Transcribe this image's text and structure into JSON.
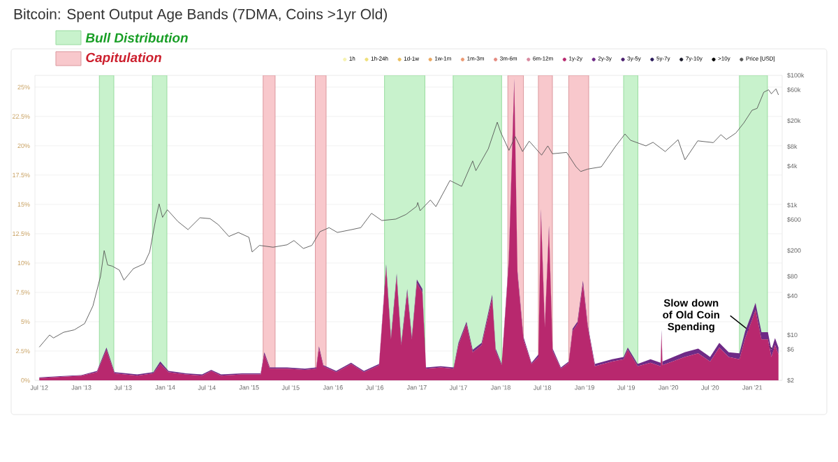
{
  "chart_data": {
    "type": "area",
    "title": "Bitcoin: Spent Output Age Bands (7DMA, Coins >1yr Old)",
    "stacked": true,
    "log": "y2",
    "grid": "y",
    "legend": "top",
    "x": [
      "2012-07-01",
      "2012-10-01",
      "2013-01-01",
      "2013-03-10",
      "2013-04-20",
      "2013-05-25",
      "2013-09-01",
      "2013-11-10",
      "2013-12-10",
      "2014-01-15",
      "2014-04-01",
      "2014-06-10",
      "2014-07-20",
      "2014-09-01",
      "2014-12-01",
      "2015-02-20",
      "2015-03-08",
      "2015-04-01",
      "2015-06-15",
      "2015-09-01",
      "2015-10-20",
      "2015-11-01",
      "2015-11-20",
      "2016-01-15",
      "2016-03-20",
      "2016-05-15",
      "2016-07-20",
      "2016-08-20",
      "2016-09-10",
      "2016-10-05",
      "2016-10-25",
      "2016-11-20",
      "2016-12-10",
      "2017-01-01",
      "2017-01-25",
      "2017-02-10",
      "2017-04-15",
      "2017-06-10",
      "2017-07-01",
      "2017-08-05",
      "2017-09-01",
      "2017-10-10",
      "2017-11-25",
      "2017-12-10",
      "2018-01-05",
      "2018-02-05",
      "2018-03-01",
      "2018-03-15",
      "2018-04-10",
      "2018-05-15",
      "2018-06-14",
      "2018-06-25",
      "2018-07-12",
      "2018-07-30",
      "2018-08-15",
      "2018-09-20",
      "2018-10-24",
      "2018-11-10",
      "2018-12-01",
      "2018-12-25",
      "2019-01-15",
      "2019-02-15",
      "2019-05-01",
      "2019-06-20",
      "2019-07-08",
      "2019-08-20",
      "2019-10-15",
      "2019-11-28",
      "2019-12-02",
      "2019-12-06",
      "2020-03-12",
      "2020-05-10",
      "2020-07-01",
      "2020-08-10",
      "2020-09-20",
      "2020-11-06",
      "2020-12-01",
      "2020-12-28",
      "2021-01-15",
      "2021-02-10",
      "2021-03-10",
      "2021-03-25",
      "2021-04-10",
      "2021-04-25"
    ],
    "series": [
      {
        "name": "1h",
        "color": "#f6f3b0",
        "values": [
          null,
          null,
          null,
          null,
          null,
          null,
          null,
          null,
          null,
          null,
          null,
          null,
          null,
          null,
          null,
          null,
          null,
          null,
          null,
          null,
          null,
          null,
          null,
          null,
          null,
          null,
          null,
          null,
          null,
          null,
          null,
          null,
          null,
          null,
          null,
          null,
          null,
          null,
          null,
          null,
          null,
          null,
          null,
          null,
          null,
          null,
          null,
          null,
          null,
          null,
          null,
          null,
          null,
          null,
          null,
          null,
          null,
          null,
          null,
          null,
          null,
          null,
          null,
          null,
          null,
          null,
          null,
          null,
          null,
          null,
          null,
          null,
          null,
          null,
          null,
          null,
          null,
          null,
          null,
          null,
          null,
          null,
          null,
          null
        ]
      },
      {
        "name": "1h-24h",
        "color": "#efe07a",
        "values": [
          null,
          null,
          null,
          null,
          null,
          null,
          null,
          null,
          null,
          null,
          null,
          null,
          null,
          null,
          null,
          null,
          null,
          null,
          null,
          null,
          null,
          null,
          null,
          null,
          null,
          null,
          null,
          null,
          null,
          null,
          null,
          null,
          null,
          null,
          null,
          null,
          null,
          null,
          null,
          null,
          null,
          null,
          null,
          null,
          null,
          null,
          null,
          null,
          null,
          null,
          null,
          null,
          null,
          null,
          null,
          null,
          null,
          null,
          null,
          null,
          null,
          null,
          null,
          null,
          null,
          null,
          null,
          null,
          null,
          null,
          null,
          null,
          null,
          null,
          null,
          null,
          null,
          null,
          null,
          null,
          null,
          null,
          null,
          null
        ]
      },
      {
        "name": "1d-1w",
        "color": "#ebc060",
        "values": [
          null,
          null,
          null,
          null,
          null,
          null,
          null,
          null,
          null,
          null,
          null,
          null,
          null,
          null,
          null,
          null,
          null,
          null,
          null,
          null,
          null,
          null,
          null,
          null,
          null,
          null,
          null,
          null,
          null,
          null,
          null,
          null,
          null,
          null,
          null,
          null,
          null,
          null,
          null,
          null,
          null,
          null,
          null,
          null,
          null,
          null,
          null,
          null,
          null,
          null,
          null,
          null,
          null,
          null,
          null,
          null,
          null,
          null,
          null,
          null,
          null,
          null,
          null,
          null,
          null,
          null,
          null,
          null,
          null,
          null,
          null,
          null,
          null,
          null,
          null,
          null,
          null,
          null,
          null,
          null,
          null,
          null,
          null,
          null
        ]
      },
      {
        "name": "1w-1m",
        "color": "#eba860",
        "values": [
          null,
          null,
          null,
          null,
          null,
          null,
          null,
          null,
          null,
          null,
          null,
          null,
          null,
          null,
          null,
          null,
          null,
          null,
          null,
          null,
          null,
          null,
          null,
          null,
          null,
          null,
          null,
          null,
          null,
          null,
          null,
          null,
          null,
          null,
          null,
          null,
          null,
          null,
          null,
          null,
          null,
          null,
          null,
          null,
          null,
          null,
          null,
          null,
          null,
          null,
          null,
          null,
          null,
          null,
          null,
          null,
          null,
          null,
          null,
          null,
          null,
          null,
          null,
          null,
          null,
          null,
          null,
          null,
          null,
          null,
          null,
          null,
          null,
          null,
          null,
          null,
          null,
          null,
          null,
          null,
          null,
          null,
          null,
          null
        ]
      },
      {
        "name": "1m-3m",
        "color": "#ec9870",
        "values": [
          null,
          null,
          null,
          null,
          null,
          null,
          null,
          null,
          null,
          null,
          null,
          null,
          null,
          null,
          null,
          null,
          null,
          null,
          null,
          null,
          null,
          null,
          null,
          null,
          null,
          null,
          null,
          null,
          null,
          null,
          null,
          null,
          null,
          null,
          null,
          null,
          null,
          null,
          null,
          null,
          null,
          null,
          null,
          null,
          null,
          null,
          null,
          null,
          null,
          null,
          null,
          null,
          null,
          null,
          null,
          null,
          null,
          null,
          null,
          null,
          null,
          null,
          null,
          null,
          null,
          null,
          null,
          null,
          null,
          null,
          null,
          null,
          null,
          null,
          null,
          null,
          null,
          null,
          null,
          null,
          null,
          null,
          null,
          null
        ]
      },
      {
        "name": "3m-6m",
        "color": "#e48a80",
        "values": [
          null,
          null,
          null,
          null,
          null,
          null,
          null,
          null,
          null,
          null,
          null,
          null,
          null,
          null,
          null,
          null,
          null,
          null,
          null,
          null,
          null,
          null,
          null,
          null,
          null,
          null,
          null,
          null,
          null,
          null,
          null,
          null,
          null,
          null,
          null,
          null,
          null,
          null,
          null,
          null,
          null,
          null,
          null,
          null,
          null,
          null,
          null,
          null,
          null,
          null,
          null,
          null,
          null,
          null,
          null,
          null,
          null,
          null,
          null,
          null,
          null,
          null,
          null,
          null,
          null,
          null,
          null,
          null,
          null,
          null,
          null,
          null,
          null,
          null,
          null,
          null,
          null,
          null,
          null,
          null,
          null,
          null,
          null,
          null
        ]
      },
      {
        "name": "6m-12m",
        "color": "#d88aa0",
        "values": [
          null,
          null,
          null,
          null,
          null,
          null,
          null,
          null,
          null,
          null,
          null,
          null,
          null,
          null,
          null,
          null,
          null,
          null,
          null,
          null,
          null,
          null,
          null,
          null,
          null,
          null,
          null,
          null,
          null,
          null,
          null,
          null,
          null,
          null,
          null,
          null,
          null,
          null,
          null,
          null,
          null,
          null,
          null,
          null,
          null,
          null,
          null,
          null,
          null,
          null,
          null,
          null,
          null,
          null,
          null,
          null,
          null,
          null,
          null,
          null,
          null,
          null,
          null,
          null,
          null,
          null,
          null,
          null,
          null,
          null,
          null,
          null,
          null,
          null,
          null,
          null,
          null,
          null,
          null,
          null,
          null,
          null,
          null,
          null
        ]
      },
      {
        "name": "1y-2y",
        "color": "#b8286e",
        "values": [
          0.2,
          0.3,
          0.4,
          0.7,
          2.6,
          0.6,
          0.4,
          0.6,
          1.4,
          0.7,
          0.5,
          0.4,
          0.8,
          0.4,
          0.5,
          0.5,
          2.2,
          1.0,
          1.0,
          0.9,
          1.0,
          2.7,
          1.2,
          0.7,
          1.4,
          0.7,
          1.3,
          9.6,
          3.5,
          8.8,
          3.0,
          7.5,
          3.5,
          8.3,
          7.5,
          1.0,
          1.1,
          1.0,
          3.0,
          4.8,
          2.4,
          3.0,
          7.0,
          2.5,
          1.3,
          10.0,
          25.3,
          9.0,
          3.5,
          1.4,
          2.0,
          14.2,
          4.5,
          12.8,
          2.5,
          1.0,
          1.5,
          4.2,
          4.8,
          8.2,
          4.5,
          1.2,
          1.6,
          1.8,
          2.6,
          1.2,
          1.5,
          1.2,
          4.0,
          1.3,
          2.0,
          2.3,
          1.6,
          2.8,
          2.0,
          1.8,
          3.6,
          5.0,
          6.0,
          3.5,
          3.5,
          2.0,
          3.0,
          2.2
        ]
      },
      {
        "name": "2y-3y",
        "color": "#6e2a86",
        "values": [
          0.05,
          0.05,
          0.05,
          0.1,
          0.2,
          0.1,
          0.1,
          0.1,
          0.2,
          0.1,
          0.1,
          0.1,
          0.1,
          0.1,
          0.1,
          0.1,
          0.2,
          0.1,
          0.1,
          0.1,
          0.1,
          0.2,
          0.1,
          0.1,
          0.1,
          0.1,
          0.1,
          0.3,
          0.2,
          0.3,
          0.2,
          0.3,
          0.2,
          0.3,
          0.3,
          0.1,
          0.1,
          0.1,
          0.2,
          0.2,
          0.2,
          0.2,
          0.3,
          0.2,
          0.1,
          0.3,
          0.4,
          0.3,
          0.2,
          0.1,
          0.2,
          0.4,
          0.2,
          0.4,
          0.2,
          0.1,
          0.1,
          0.2,
          0.2,
          0.3,
          0.2,
          0.2,
          0.2,
          0.2,
          0.2,
          0.2,
          0.3,
          0.3,
          0.3,
          0.3,
          0.4,
          0.4,
          0.4,
          0.4,
          0.4,
          0.5,
          0.6,
          0.6,
          0.6,
          0.6,
          0.6,
          0.6,
          0.6,
          0.6
        ]
      },
      {
        "name": "3y-5y",
        "color": "#4a1e6e",
        "values": [
          null,
          null,
          null,
          null,
          null,
          null,
          null,
          null,
          null,
          null,
          null,
          null,
          null,
          null,
          null,
          null,
          null,
          null,
          null,
          null,
          null,
          null,
          null,
          null,
          null,
          null,
          null,
          null,
          null,
          null,
          null,
          null,
          null,
          null,
          null,
          null,
          null,
          null,
          null,
          null,
          null,
          null,
          null,
          null,
          null,
          null,
          null,
          null,
          null,
          null,
          null,
          null,
          null,
          null,
          null,
          null,
          null,
          null,
          null,
          null,
          null,
          null,
          null,
          null,
          null,
          null,
          null,
          null,
          null,
          null,
          null,
          null,
          null,
          null,
          null,
          null,
          null,
          null,
          null,
          null,
          null,
          null,
          null,
          null
        ]
      },
      {
        "name": "5y-7y",
        "color": "#2a1a5a",
        "values": [
          null,
          null,
          null,
          null,
          null,
          null,
          null,
          null,
          null,
          null,
          null,
          null,
          null,
          null,
          null,
          null,
          null,
          null,
          null,
          null,
          null,
          null,
          null,
          null,
          null,
          null,
          null,
          null,
          null,
          null,
          null,
          null,
          null,
          null,
          null,
          null,
          null,
          null,
          null,
          null,
          null,
          null,
          null,
          null,
          null,
          null,
          null,
          null,
          null,
          null,
          null,
          null,
          null,
          null,
          null,
          null,
          null,
          null,
          null,
          null,
          null,
          null,
          null,
          null,
          null,
          null,
          null,
          null,
          null,
          null,
          null,
          null,
          null,
          null,
          null,
          null,
          null,
          null,
          null,
          null,
          null,
          null,
          null,
          null
        ]
      },
      {
        "name": "7y-10y",
        "color": "#1a1a2a",
        "values": [
          null,
          null,
          null,
          null,
          null,
          null,
          null,
          null,
          null,
          null,
          null,
          null,
          null,
          null,
          null,
          null,
          null,
          null,
          null,
          null,
          null,
          null,
          null,
          null,
          null,
          null,
          null,
          null,
          null,
          null,
          null,
          null,
          null,
          null,
          null,
          null,
          null,
          null,
          null,
          null,
          null,
          null,
          null,
          null,
          null,
          null,
          null,
          null,
          null,
          null,
          null,
          null,
          null,
          null,
          null,
          null,
          null,
          null,
          null,
          null,
          null,
          null,
          null,
          null,
          null,
          null,
          null,
          null,
          null,
          null,
          null,
          null,
          null,
          null,
          null,
          null,
          null,
          null,
          null,
          null,
          null,
          null,
          null,
          null
        ]
      },
      {
        "name": ">10y",
        "color": "#000000",
        "values": [
          null,
          null,
          null,
          null,
          null,
          null,
          null,
          null,
          null,
          null,
          null,
          null,
          null,
          null,
          null,
          null,
          null,
          null,
          null,
          null,
          null,
          null,
          null,
          null,
          null,
          null,
          null,
          null,
          null,
          null,
          null,
          null,
          null,
          null,
          null,
          null,
          null,
          null,
          null,
          null,
          null,
          null,
          null,
          null,
          null,
          null,
          null,
          null,
          null,
          null,
          null,
          null,
          null,
          null,
          null,
          null,
          null,
          null,
          null,
          null,
          null,
          null,
          null,
          null,
          null,
          null,
          null,
          null,
          null,
          null,
          null,
          null,
          null,
          null,
          null,
          null,
          null,
          null,
          null,
          null,
          null,
          null,
          null,
          null
        ]
      },
      {
        "name": "Price [USD]",
        "type": "line",
        "axis": "y2",
        "color": "#555555",
        "x": [
          "2012-07-01",
          "2012-08-15",
          "2012-09-01",
          "2012-10-15",
          "2012-12-01",
          "2013-01-15",
          "2013-02-20",
          "2013-03-25",
          "2013-04-10",
          "2013-04-25",
          "2013-05-15",
          "2013-06-15",
          "2013-07-05",
          "2013-08-15",
          "2013-10-01",
          "2013-10-25",
          "2013-11-20",
          "2013-12-05",
          "2013-12-20",
          "2014-01-10",
          "2014-02-25",
          "2014-04-10",
          "2014-06-01",
          "2014-07-15",
          "2014-08-20",
          "2014-10-05",
          "2014-11-15",
          "2014-12-31",
          "2015-01-14",
          "2015-02-15",
          "2015-04-15",
          "2015-06-15",
          "2015-07-15",
          "2015-08-25",
          "2015-10-01",
          "2015-11-05",
          "2015-12-15",
          "2016-01-20",
          "2016-03-15",
          "2016-05-01",
          "2016-06-17",
          "2016-08-01",
          "2016-10-01",
          "2016-11-15",
          "2016-12-31",
          "2017-01-05",
          "2017-01-15",
          "2017-03-01",
          "2017-03-25",
          "2017-05-25",
          "2017-07-15",
          "2017-09-01",
          "2017-09-15",
          "2017-11-08",
          "2017-12-17",
          "2017-12-31",
          "2018-02-06",
          "2018-03-05",
          "2018-04-06",
          "2018-05-05",
          "2018-06-28",
          "2018-07-25",
          "2018-08-14",
          "2018-10-15",
          "2018-11-25",
          "2018-12-15",
          "2019-01-15",
          "2019-03-15",
          "2019-05-15",
          "2019-06-26",
          "2019-07-20",
          "2019-09-25",
          "2019-10-26",
          "2019-12-18",
          "2020-02-12",
          "2020-03-13",
          "2020-05-08",
          "2020-07-15",
          "2020-08-17",
          "2020-09-10",
          "2020-10-21",
          "2020-11-25",
          "2020-12-31",
          "2021-01-22",
          "2021-02-20",
          "2021-03-13",
          "2021-03-25",
          "2021-04-14",
          "2021-04-25"
        ],
        "values": [
          6.5,
          10,
          9,
          11,
          12,
          15,
          28,
          80,
          200,
          120,
          115,
          100,
          70,
          105,
          125,
          190,
          600,
          1050,
          650,
          850,
          560,
          420,
          640,
          620,
          500,
          330,
          380,
          320,
          190,
          240,
          225,
          245,
          285,
          215,
          240,
          390,
          450,
          380,
          415,
          450,
          750,
          580,
          610,
          720,
          960,
          1100,
          820,
          1200,
          950,
          2400,
          1950,
          4800,
          3400,
          7400,
          19000,
          13500,
          7000,
          11400,
          6700,
          9700,
          5900,
          8200,
          6200,
          6500,
          3900,
          3300,
          3600,
          3900,
          8000,
          12500,
          10000,
          8200,
          9300,
          6700,
          10200,
          5000,
          9800,
          9200,
          12200,
          10300,
          12900,
          18500,
          29000,
          31000,
          55000,
          60000,
          52000,
          62000,
          50000
        ]
      }
    ],
    "xlim": [
      "2012-06-12",
      "2021-05-11"
    ],
    "xticks": [
      {
        "value": "2012-07",
        "label": "Jul '12"
      },
      {
        "value": "2013-01",
        "label": "Jan '13"
      },
      {
        "value": "2013-07",
        "label": "Jul '13"
      },
      {
        "value": "2014-01",
        "label": "Jan '14"
      },
      {
        "value": "2014-07",
        "label": "Jul '14"
      },
      {
        "value": "2015-01",
        "label": "Jan '15"
      },
      {
        "value": "2015-07",
        "label": "Jul '15"
      },
      {
        "value": "2016-01",
        "label": "Jan '16"
      },
      {
        "value": "2016-07",
        "label": "Jul '16"
      },
      {
        "value": "2017-01",
        "label": "Jan '17"
      },
      {
        "value": "2017-07",
        "label": "Jul '17"
      },
      {
        "value": "2018-01",
        "label": "Jan '18"
      },
      {
        "value": "2018-07",
        "label": "Jul '18"
      },
      {
        "value": "2019-01",
        "label": "Jan '19"
      },
      {
        "value": "2019-07",
        "label": "Jul '19"
      },
      {
        "value": "2020-01",
        "label": "Jan '20"
      },
      {
        "value": "2020-07",
        "label": "Jul '20"
      },
      {
        "value": "2021-01",
        "label": "Jan '21"
      }
    ],
    "ylim": [
      0,
      26
    ],
    "yticks": [
      {
        "value": 0,
        "label": "0%"
      },
      {
        "value": 2.5,
        "label": "2.5%"
      },
      {
        "value": 5,
        "label": "5%"
      },
      {
        "value": 7.5,
        "label": "7.5%"
      },
      {
        "value": 10,
        "label": "10%"
      },
      {
        "value": 12.5,
        "label": "12.5%"
      },
      {
        "value": 15,
        "label": "15%"
      },
      {
        "value": 17.5,
        "label": "17.5%"
      },
      {
        "value": 20,
        "label": "20%"
      },
      {
        "value": 22.5,
        "label": "22.5%"
      },
      {
        "value": 25,
        "label": "25%"
      }
    ],
    "y2lim": [
      2,
      100000
    ],
    "y2ticks": [
      {
        "value": 2,
        "label": "$2"
      },
      {
        "value": 6,
        "label": "$6"
      },
      {
        "value": 10,
        "label": "$10"
      },
      {
        "value": 40,
        "label": "$40"
      },
      {
        "value": 80,
        "label": "$80"
      },
      {
        "value": 200,
        "label": "$200"
      },
      {
        "value": 600,
        "label": "$600"
      },
      {
        "value": 1000,
        "label": "$1k"
      },
      {
        "value": 4000,
        "label": "$4k"
      },
      {
        "value": 8000,
        "label": "$8k"
      },
      {
        "value": 20000,
        "label": "$20k"
      },
      {
        "value": 60000,
        "label": "$60k"
      },
      {
        "value": 100000,
        "label": "$100k"
      }
    ],
    "bands": [
      {
        "axis": "x",
        "from": "2013-03-20",
        "to": "2013-05-22",
        "color": "#c8f2cc",
        "label": "Bull Distribution"
      },
      {
        "axis": "x",
        "from": "2013-11-06",
        "to": "2014-01-08",
        "color": "#c8f2cc"
      },
      {
        "axis": "x",
        "from": "2015-03-03",
        "to": "2015-04-24",
        "color": "#f8c8cc",
        "label": "Capitulation"
      },
      {
        "axis": "x",
        "from": "2015-10-16",
        "to": "2015-12-02",
        "color": "#f8c8cc"
      },
      {
        "axis": "x",
        "from": "2016-08-13",
        "to": "2017-02-05",
        "color": "#c8f2cc"
      },
      {
        "axis": "x",
        "from": "2017-06-08",
        "to": "2018-01-05",
        "color": "#c8f2cc"
      },
      {
        "axis": "x",
        "from": "2018-02-01",
        "to": "2018-04-10",
        "color": "#f8c8cc"
      },
      {
        "axis": "x",
        "from": "2018-06-14",
        "to": "2018-08-14",
        "color": "#f8c8cc"
      },
      {
        "axis": "x",
        "from": "2018-10-24",
        "to": "2019-01-19",
        "color": "#f8c8cc"
      },
      {
        "axis": "x",
        "from": "2019-06-20",
        "to": "2019-08-21",
        "color": "#c8f2cc"
      },
      {
        "axis": "x",
        "from": "2020-11-06",
        "to": "2021-03-08",
        "color": "#c8f2cc"
      }
    ],
    "annotations": [
      {
        "text": "Slow down of Old Coin Spending",
        "x": "2021-04-22",
        "y": 2.3
      }
    ]
  }
}
